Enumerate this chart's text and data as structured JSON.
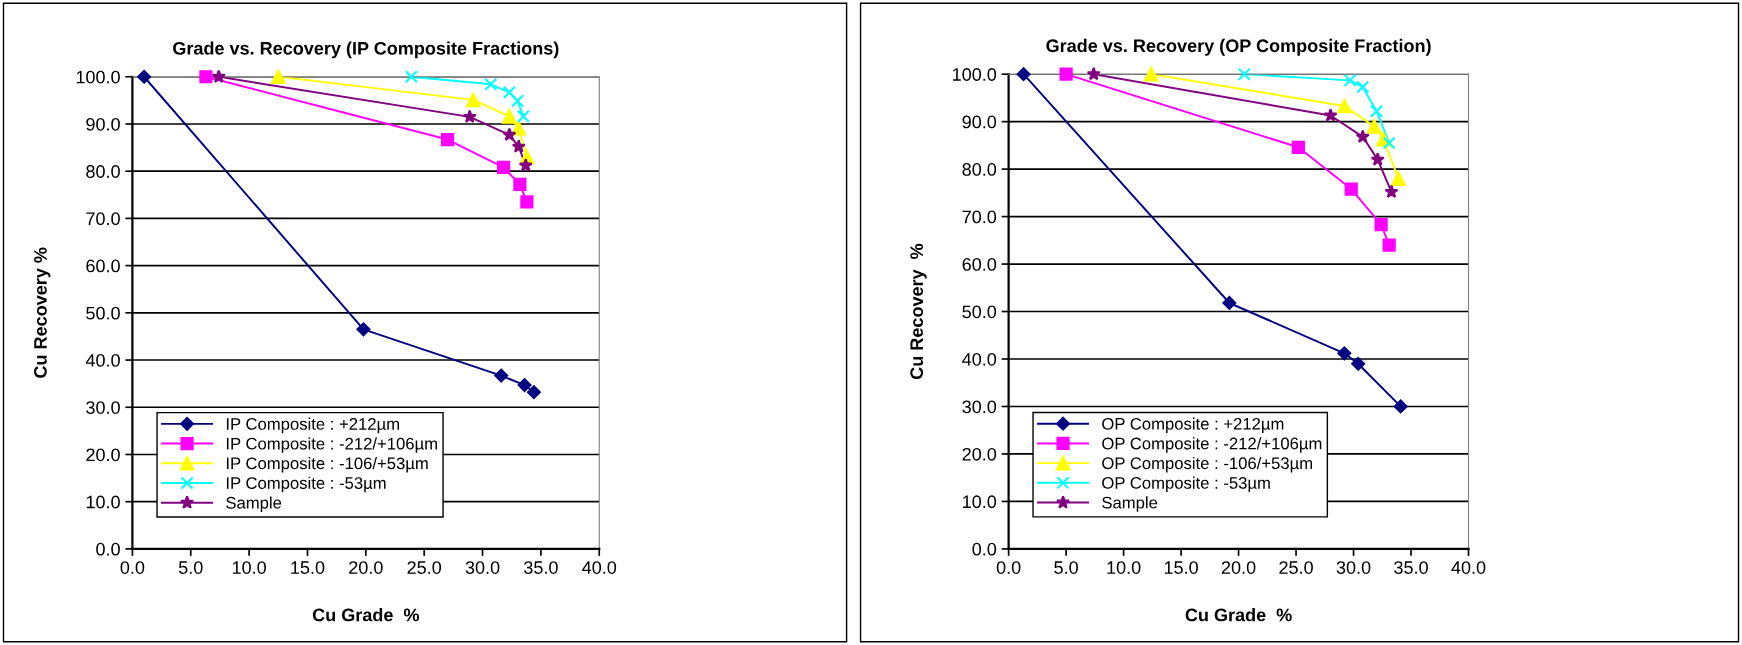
{
  "chart_data": [
    {
      "type": "line",
      "title": "Grade vs. Recovery (IP Composite Fractions)",
      "xlabel": "Cu Grade  %",
      "ylabel": "Cu Recovery %",
      "xlim": [
        0,
        40
      ],
      "xticks": [
        {
          "value": 0,
          "label": "0.0"
        },
        {
          "value": 5,
          "label": "5.0"
        },
        {
          "value": 10,
          "label": "10.0"
        },
        {
          "value": 15,
          "label": "15.0"
        },
        {
          "value": 20,
          "label": "20.0"
        },
        {
          "value": 25,
          "label": "25.0"
        },
        {
          "value": 30,
          "label": "30.0"
        },
        {
          "value": 35,
          "label": "35.0"
        },
        {
          "value": 40,
          "label": "40.0"
        }
      ],
      "ylim": [
        0,
        100
      ],
      "yticks": [
        {
          "value": 0,
          "label": "0.0"
        },
        {
          "value": 10,
          "label": "10.0"
        },
        {
          "value": 20,
          "label": "20.0"
        },
        {
          "value": 30,
          "label": "30.0"
        },
        {
          "value": 40,
          "label": "40.0"
        },
        {
          "value": 50,
          "label": "50.0"
        },
        {
          "value": 60,
          "label": "60.0"
        },
        {
          "value": 70,
          "label": "70.0"
        },
        {
          "value": 80,
          "label": "80.0"
        },
        {
          "value": 90,
          "label": "90.0"
        },
        {
          "value": 100,
          "label": "100.0"
        }
      ],
      "grid": "y",
      "legend": "bottom left",
      "line_style": "solid",
      "series": [
        {
          "name": "IP Composite : +212µm",
          "color": "#000080",
          "marker": "diamond",
          "x": [
            1.0,
            19.8,
            31.6,
            33.6,
            34.4
          ],
          "values": [
            100,
            46.5,
            36.7,
            34.7,
            33.2
          ]
        },
        {
          "name": "IP Composite : -212/+106µm",
          "color": "#ff00ff",
          "marker": "square",
          "x": [
            6.3,
            27.0,
            31.8,
            33.2,
            33.8
          ],
          "values": [
            100,
            86.7,
            80.8,
            77.2,
            73.5
          ]
        },
        {
          "name": "IP Composite : -106/+53µm",
          "color": "#ffff00",
          "marker": "triangle",
          "x": [
            12.5,
            29.2,
            32.3,
            33.1,
            33.8
          ],
          "values": [
            100,
            95.1,
            91.6,
            89.1,
            83.0
          ]
        },
        {
          "name": "IP Composite : -53µm",
          "color": "#00ffff",
          "marker": "cross",
          "x": [
            23.9,
            30.7,
            32.3,
            33.0,
            33.5
          ],
          "values": [
            100,
            98.4,
            96.7,
            94.9,
            91.6
          ]
        },
        {
          "name": "Sample",
          "color": "#800080",
          "marker": "star",
          "x": [
            7.4,
            28.9,
            32.3,
            33.1,
            33.7
          ],
          "values": [
            100,
            91.5,
            87.7,
            85.2,
            81.2
          ]
        }
      ]
    },
    {
      "type": "line",
      "title": "Grade vs. Recovery (OP Composite Fraction)",
      "xlabel": "Cu Grade  %",
      "ylabel": "Cu Recovery  %",
      "xlim": [
        0,
        40
      ],
      "xticks": [
        {
          "value": 0,
          "label": "0.0"
        },
        {
          "value": 5,
          "label": "5.0"
        },
        {
          "value": 10,
          "label": "10.0"
        },
        {
          "value": 15,
          "label": "15.0"
        },
        {
          "value": 20,
          "label": "20.0"
        },
        {
          "value": 25,
          "label": "25.0"
        },
        {
          "value": 30,
          "label": "30.0"
        },
        {
          "value": 35,
          "label": "35.0"
        },
        {
          "value": 40,
          "label": "40.0"
        }
      ],
      "ylim": [
        0,
        100
      ],
      "yticks": [
        {
          "value": 0,
          "label": "0.0"
        },
        {
          "value": 10,
          "label": "10.0"
        },
        {
          "value": 20,
          "label": "20.0"
        },
        {
          "value": 30,
          "label": "30.0"
        },
        {
          "value": 40,
          "label": "40.0"
        },
        {
          "value": 50,
          "label": "50.0"
        },
        {
          "value": 60,
          "label": "60.0"
        },
        {
          "value": 70,
          "label": "70.0"
        },
        {
          "value": 80,
          "label": "80.0"
        },
        {
          "value": 90,
          "label": "90.0"
        },
        {
          "value": 100,
          "label": "100.0"
        }
      ],
      "grid": "y",
      "legend": "bottom left",
      "line_style": "solid",
      "series": [
        {
          "name": "OP Composite : +212µm",
          "color": "#000080",
          "marker": "diamond",
          "x": [
            1.3,
            19.2,
            29.2,
            30.4,
            34.1
          ],
          "values": [
            100,
            51.8,
            41.2,
            39.0,
            30.0
          ]
        },
        {
          "name": "OP Composite : -212/+106µm",
          "color": "#ff00ff",
          "marker": "square",
          "x": [
            5.0,
            25.2,
            29.8,
            32.4,
            33.1
          ],
          "values": [
            100,
            84.6,
            75.8,
            68.3,
            64.0
          ]
        },
        {
          "name": "OP Composite : -106/+53µm",
          "color": "#ffff00",
          "marker": "triangle",
          "x": [
            12.4,
            29.2,
            31.8,
            32.6,
            33.9
          ],
          "values": [
            100,
            93.3,
            89.0,
            86.3,
            78.0
          ]
        },
        {
          "name": "OP Composite : -53µm",
          "color": "#00ffff",
          "marker": "cross",
          "x": [
            20.5,
            29.7,
            30.8,
            32.0,
            33.1
          ],
          "values": [
            100,
            98.7,
            97.3,
            92.2,
            85.5
          ]
        },
        {
          "name": "Sample",
          "color": "#800080",
          "marker": "star",
          "x": [
            7.4,
            28.0,
            30.8,
            32.1,
            33.3
          ],
          "values": [
            100,
            91.3,
            86.8,
            82.0,
            75.2
          ]
        }
      ]
    }
  ]
}
